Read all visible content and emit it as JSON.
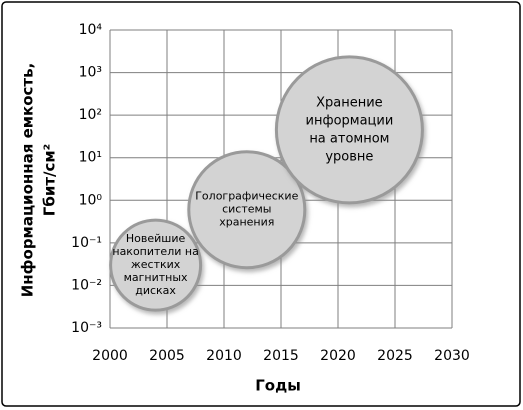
{
  "chart_data": {
    "type": "bubble",
    "xlabel": "Годы",
    "ylabel": [
      "Информационная емкость,",
      "Гбит/см²"
    ],
    "xlim": [
      2000,
      2030
    ],
    "xticks": [
      2000,
      2005,
      2010,
      2015,
      2020,
      2025,
      2030
    ],
    "ylim": [
      0.001,
      10000
    ],
    "log_y": true,
    "grid": true,
    "yticks": [
      {
        "value": 0.001,
        "label": "10⁻³"
      },
      {
        "value": 0.01,
        "label": "10⁻²"
      },
      {
        "value": 0.1,
        "label": "10⁻¹"
      },
      {
        "value": 1,
        "label": "10⁰"
      },
      {
        "value": 10,
        "label": "10¹"
      },
      {
        "value": 100,
        "label": "10²"
      },
      {
        "value": 1000,
        "label": "10³"
      },
      {
        "value": 10000,
        "label": "10⁴"
      }
    ],
    "color": "#d3d3d3",
    "x": [
      2004,
      2012,
      2021
    ],
    "y": [
      0.03,
      0.6,
      45
    ],
    "sizes": [
      45,
      58,
      73
    ],
    "point_labels": [
      [
        "Новейшие",
        "накопители на",
        "жестких",
        "магнитных",
        "дисках"
      ],
      [
        "Голографические",
        "системы",
        "хранения"
      ],
      [
        "Хранение",
        "информации",
        "на атомном",
        "уровне"
      ]
    ]
  }
}
